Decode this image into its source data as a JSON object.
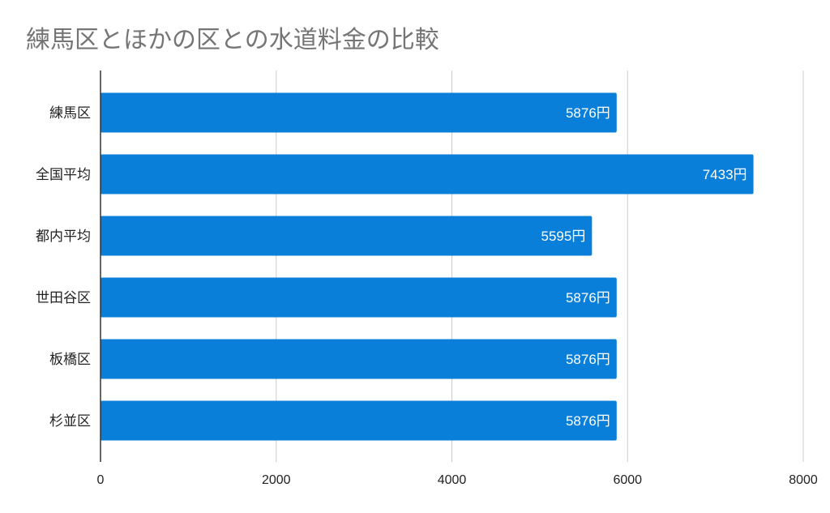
{
  "chart_data": {
    "type": "bar",
    "orientation": "horizontal",
    "title": "練馬区とほかの区との水道料金の比較",
    "categories": [
      "練馬区",
      "全国平均",
      "都内平均",
      "世田谷区",
      "板橋区",
      "杉並区"
    ],
    "values": [
      5876,
      7433,
      5595,
      5876,
      5876,
      5876
    ],
    "data_labels": [
      "5876円",
      "7433円",
      "5595円",
      "5876円",
      "5876円",
      "5876円"
    ],
    "xlim": [
      0,
      8000
    ],
    "x_ticks": [
      "0",
      "2000",
      "4000",
      "6000",
      "8000"
    ],
    "grid": true,
    "legend": "none",
    "bar_color": "#0a7fd9"
  }
}
